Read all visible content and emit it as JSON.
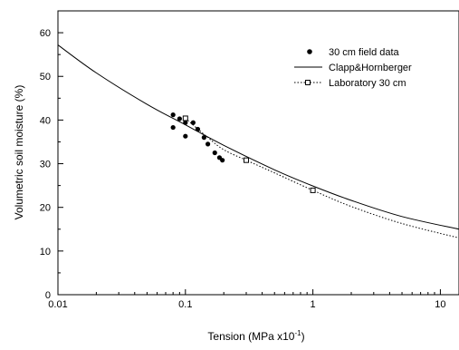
{
  "chart_data": {
    "type": "scatter",
    "xlabel_main": "Tension (MPa x10",
    "xlabel_sup": "-1",
    "xlabel_end": ")",
    "ylabel": "Volumetric soil moisture (%)",
    "x_scale": "log",
    "xlim": [
      0.01,
      14
    ],
    "ylim": [
      0,
      65
    ],
    "x_ticks": [
      {
        "value": 0.01,
        "label": "0.01"
      },
      {
        "value": 0.1,
        "label": "0.1"
      },
      {
        "value": 1,
        "label": "1"
      },
      {
        "value": 10,
        "label": "10"
      }
    ],
    "y_ticks": [
      {
        "value": 0,
        "label": "0"
      },
      {
        "value": 10,
        "label": "10"
      },
      {
        "value": 20,
        "label": "20"
      },
      {
        "value": 30,
        "label": "30"
      },
      {
        "value": 40,
        "label": "40"
      },
      {
        "value": 50,
        "label": "50"
      },
      {
        "value": 60,
        "label": "60"
      }
    ],
    "grid": false,
    "legend_position": "top-right",
    "series": [
      {
        "name": "30 cm field data",
        "kind": "scatter",
        "marker": "filled-circle",
        "color": "#000000",
        "points": [
          {
            "x": 0.08,
            "y": 41.2
          },
          {
            "x": 0.08,
            "y": 38.3
          },
          {
            "x": 0.09,
            "y": 40.3
          },
          {
            "x": 0.1,
            "y": 36.3
          },
          {
            "x": 0.1,
            "y": 39.4
          },
          {
            "x": 0.115,
            "y": 39.4
          },
          {
            "x": 0.125,
            "y": 37.9
          },
          {
            "x": 0.14,
            "y": 36.0
          },
          {
            "x": 0.15,
            "y": 34.5
          },
          {
            "x": 0.17,
            "y": 32.5
          },
          {
            "x": 0.185,
            "y": 31.4
          },
          {
            "x": 0.195,
            "y": 30.8
          }
        ]
      },
      {
        "name": "Clapp&Hornberger",
        "kind": "line",
        "style": "solid",
        "color": "#000000",
        "points": [
          {
            "x": 0.01,
            "y": 57.2
          },
          {
            "x": 0.02,
            "y": 50.8
          },
          {
            "x": 0.05,
            "y": 43.6
          },
          {
            "x": 0.1,
            "y": 38.9
          },
          {
            "x": 0.2,
            "y": 34.2
          },
          {
            "x": 0.5,
            "y": 28.6
          },
          {
            "x": 1,
            "y": 24.9
          },
          {
            "x": 2,
            "y": 21.6
          },
          {
            "x": 5,
            "y": 17.9
          },
          {
            "x": 14,
            "y": 15.0
          }
        ]
      },
      {
        "name": "Laboratory 30 cm",
        "kind": "line-markers",
        "style": "dotted",
        "marker": "open-square",
        "color": "#000000",
        "points": [
          {
            "x": 0.1,
            "y": 40.4
          },
          {
            "x": 0.3,
            "y": 30.8
          },
          {
            "x": 1,
            "y": 23.9
          }
        ],
        "curve": [
          {
            "x": 0.1,
            "y": 40.4
          },
          {
            "x": 0.15,
            "y": 36.0
          },
          {
            "x": 0.2,
            "y": 33.2
          },
          {
            "x": 0.3,
            "y": 30.8
          },
          {
            "x": 0.5,
            "y": 27.9
          },
          {
            "x": 1,
            "y": 23.9
          },
          {
            "x": 2,
            "y": 20.2
          },
          {
            "x": 5,
            "y": 16.3
          },
          {
            "x": 14,
            "y": 13.0
          }
        ]
      }
    ]
  }
}
